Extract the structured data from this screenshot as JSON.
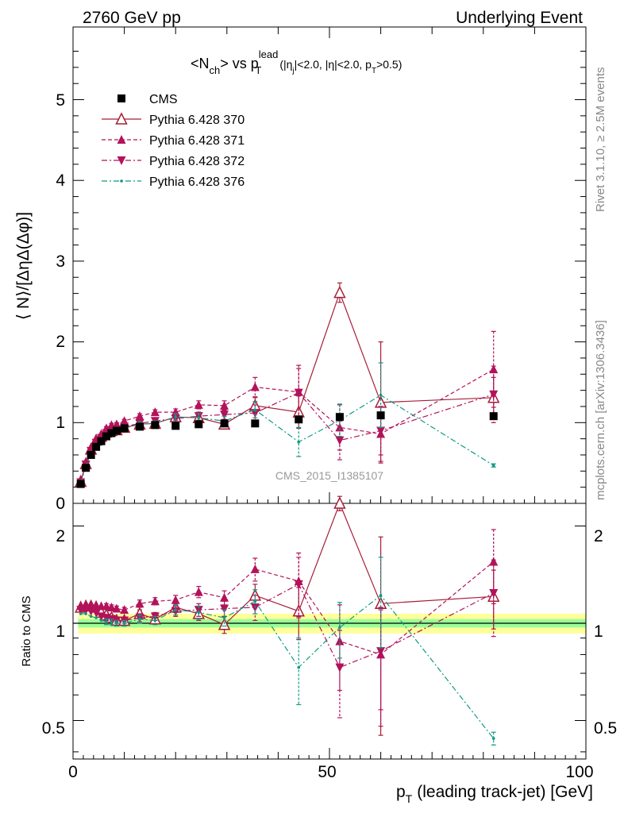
{
  "header": {
    "left": "2760 GeV pp",
    "right": "Underlying Event"
  },
  "plot_title": {
    "main": "<N",
    "main_sub": "ch",
    "vs": "> vs p",
    "vs_sup": "lead",
    "vs_sub": "T",
    "cuts_a": "(|η",
    "cuts_a_sub": "j",
    "cuts_b": "|<2.0, |η|<2.0, p",
    "cuts_b_sub": "T",
    "cuts_c": ">0.5)"
  },
  "side_labels": {
    "rivet": "Rivet 3.1.10, ≥ 2.5M events",
    "mcplots": "mcplots.cern.ch [arXiv:1306.3436]"
  },
  "watermark": "CMS_2015_I1385107",
  "axes": {
    "ylabel_main": "⟨ N⟩/[ΔηΔ(Δφ)]",
    "ylabel_ratio": "Ratio to CMS",
    "xlabel": "p",
    "xlabel_sub": "T",
    "xlabel_rest": "(leading track-jet) [GeV]",
    "main_ticks": [
      "1",
      "2",
      "3",
      "4",
      "5",
      "0"
    ],
    "ratio_ticks": [
      "0.5",
      "1",
      "2"
    ],
    "ratio_ticks_right": [
      "0.5",
      "1",
      "2"
    ],
    "x_ticks": [
      "0",
      "50",
      "100"
    ]
  },
  "legend": [
    {
      "label": "CMS",
      "color": "#000000",
      "marker": "square",
      "dash": "solid"
    },
    {
      "label": "Pythia 6.428 370",
      "color": "#a51e37",
      "marker": "triangle-open",
      "dash": "solid"
    },
    {
      "label": "Pythia 6.428 371",
      "color": "#b3125b",
      "marker": "triangle",
      "dash": "dashed"
    },
    {
      "label": "Pythia 6.428 372",
      "color": "#b3125b",
      "marker": "triangle-down",
      "dash": "dashdot"
    },
    {
      "label": "Pythia 6.428 376",
      "color": "#0f9b84",
      "marker": "dot",
      "dash": "dashdot"
    }
  ],
  "chart_data": {
    "type": "scatter",
    "x": [
      1.5,
      2.5,
      3.5,
      4.5,
      5.5,
      6.5,
      7.5,
      8.5,
      10,
      13,
      16,
      20,
      24.5,
      29.5,
      35.5,
      44,
      52,
      60,
      82
    ],
    "xlim": [
      0,
      100
    ],
    "ylim_main": [
      0,
      5.9
    ],
    "ylim_ratio": [
      0.38,
      2.35
    ],
    "ratio_scale": "log",
    "ratio_band_inner": 0.03,
    "ratio_band_outer": 0.07,
    "series": [
      {
        "name": "CMS",
        "values": [
          0.24,
          0.44,
          0.6,
          0.7,
          0.77,
          0.83,
          0.87,
          0.9,
          0.93,
          0.95,
          0.97,
          0.96,
          0.98,
          0.99,
          0.99,
          1.04,
          1.07,
          1.09,
          1.08
        ],
        "errors": [
          0.01,
          0.01,
          0.01,
          0.01,
          0.01,
          0.01,
          0.01,
          0.01,
          0.01,
          0.01,
          0.01,
          0.01,
          0.01,
          0.01,
          0.02,
          0.02,
          0.02,
          0.03,
          0.03
        ]
      },
      {
        "name": "Pythia 6.428 370",
        "values": [
          0.27,
          0.49,
          0.67,
          0.78,
          0.83,
          0.88,
          0.9,
          0.91,
          0.94,
          0.98,
          0.99,
          1.07,
          1.06,
          0.98,
          1.21,
          1.13,
          2.61,
          1.25,
          1.31
        ],
        "errors": [
          0.01,
          0.01,
          0.01,
          0.01,
          0.01,
          0.02,
          0.02,
          0.02,
          0.02,
          0.03,
          0.03,
          0.04,
          0.05,
          0.06,
          0.1,
          0.2,
          0.12,
          0.75,
          0.25
        ],
        "ratio_values": [
          1.12,
          1.13,
          1.13,
          1.12,
          1.08,
          1.06,
          1.04,
          1.02,
          1.02,
          1.07,
          1.03,
          1.12,
          1.07,
          0.99,
          1.22,
          1.09,
          2.35,
          1.15,
          1.21
        ],
        "ratio_errors": [
          0.01,
          0.01,
          0.01,
          0.01,
          0.01,
          0.02,
          0.02,
          0.02,
          0.02,
          0.03,
          0.03,
          0.04,
          0.05,
          0.06,
          0.1,
          0.2,
          0.12,
          0.7,
          0.25
        ]
      },
      {
        "name": "Pythia 6.428 371",
        "values": [
          0.27,
          0.49,
          0.67,
          0.79,
          0.86,
          0.93,
          0.97,
          0.98,
          1.02,
          1.08,
          1.13,
          1.13,
          1.22,
          1.21,
          1.44,
          1.38,
          0.94,
          0.86,
          1.66
        ],
        "errors": [
          0.01,
          0.01,
          0.01,
          0.01,
          0.01,
          0.02,
          0.02,
          0.02,
          0.02,
          0.03,
          0.03,
          0.04,
          0.05,
          0.06,
          0.12,
          0.33,
          0.28,
          0.34,
          0.47
        ],
        "ratio_values": [
          1.13,
          1.14,
          1.13,
          1.14,
          1.13,
          1.13,
          1.12,
          1.11,
          1.1,
          1.15,
          1.17,
          1.18,
          1.25,
          1.2,
          1.47,
          1.35,
          0.88,
          0.8,
          1.55
        ],
        "ratio_errors": [
          0.01,
          0.01,
          0.01,
          0.01,
          0.01,
          0.02,
          0.02,
          0.02,
          0.02,
          0.03,
          0.03,
          0.04,
          0.05,
          0.06,
          0.12,
          0.3,
          0.26,
          0.32,
          0.4
        ]
      },
      {
        "name": "Pythia 6.428 372",
        "values": [
          0.26,
          0.48,
          0.65,
          0.75,
          0.81,
          0.87,
          0.9,
          0.91,
          0.95,
          0.99,
          1.02,
          1.05,
          1.08,
          1.1,
          1.12,
          1.37,
          0.78,
          0.9,
          1.35
        ],
        "errors": [
          0.01,
          0.01,
          0.01,
          0.01,
          0.01,
          0.02,
          0.02,
          0.02,
          0.02,
          0.03,
          0.03,
          0.04,
          0.05,
          0.06,
          0.1,
          0.3,
          0.24,
          0.3,
          0.35
        ],
        "ratio_values": [
          1.1,
          1.1,
          1.09,
          1.08,
          1.05,
          1.04,
          1.03,
          1.02,
          1.02,
          1.04,
          1.05,
          1.09,
          1.1,
          1.11,
          1.12,
          1.32,
          0.73,
          0.82,
          1.24
        ],
        "ratio_errors": [
          0.01,
          0.01,
          0.01,
          0.01,
          0.01,
          0.02,
          0.02,
          0.02,
          0.02,
          0.03,
          0.03,
          0.04,
          0.05,
          0.06,
          0.1,
          0.28,
          0.22,
          0.28,
          0.33
        ]
      },
      {
        "name": "Pythia 6.428 376",
        "values": [
          0.25,
          0.46,
          0.62,
          0.72,
          0.79,
          0.84,
          0.88,
          0.9,
          0.93,
          0.98,
          0.99,
          1.07,
          1.06,
          1.02,
          1.16,
          0.76,
          1.03,
          1.34,
          0.47
        ],
        "errors": [
          0.01,
          0.01,
          0.01,
          0.01,
          0.01,
          0.02,
          0.02,
          0.02,
          0.02,
          0.03,
          0.03,
          0.04,
          0.05,
          0.06,
          0.1,
          0.18,
          0.2,
          0.4,
          0.02
        ],
        "ratio_values": [
          1.07,
          1.07,
          1.05,
          1.04,
          1.02,
          1.01,
          1.01,
          1.0,
          1.0,
          1.03,
          1.02,
          1.1,
          1.08,
          1.04,
          1.17,
          0.73,
          0.97,
          1.22,
          0.44
        ],
        "ratio_errors": [
          0.01,
          0.01,
          0.01,
          0.01,
          0.01,
          0.02,
          0.02,
          0.02,
          0.02,
          0.03,
          0.03,
          0.04,
          0.05,
          0.06,
          0.1,
          0.17,
          0.19,
          0.38,
          0.02
        ]
      }
    ]
  }
}
